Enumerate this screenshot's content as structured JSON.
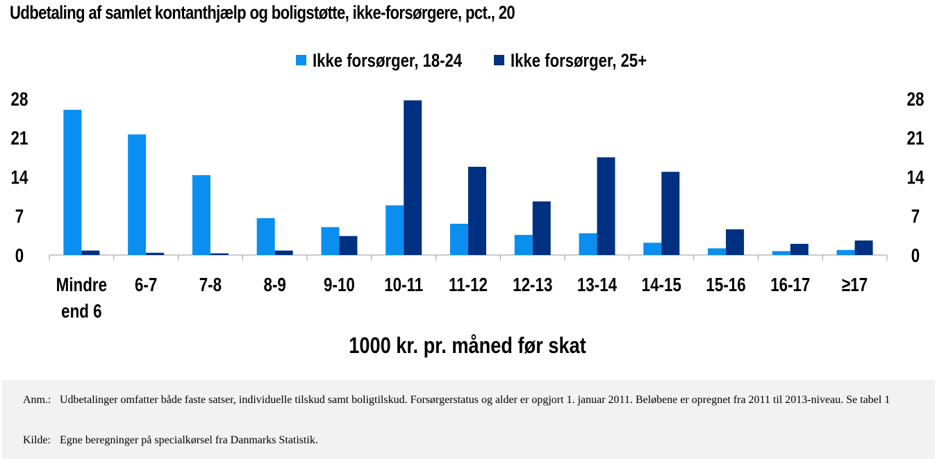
{
  "title": "Udbetaling af samlet kontanthjælp og boligstøtte, ikke-forsørgere, pct., 20",
  "colors": {
    "series1": "#0a8ff0",
    "series2": "#003082",
    "axis": "#999999",
    "notes_bg": "#f2f2f2"
  },
  "chart_data": {
    "type": "bar",
    "title": "Udbetaling af samlet kontanthjælp og boligstøtte, ikke-forsørgere, pct., 20",
    "xlabel": "1000 kr. pr. måned før skat",
    "ylabel": "",
    "ylim": [
      0,
      28
    ],
    "yticks": [
      "0",
      "7",
      "14",
      "21",
      "28"
    ],
    "legend_position": "top-center",
    "grid": false,
    "categories": [
      [
        "Mindre",
        "end 6"
      ],
      [
        "6-7"
      ],
      [
        "7-8"
      ],
      [
        "8-9"
      ],
      [
        "9-10"
      ],
      [
        "10-11"
      ],
      [
        "11-12"
      ],
      [
        "12-13"
      ],
      [
        "13-14"
      ],
      [
        "14-15"
      ],
      [
        "15-16"
      ],
      [
        "16-17"
      ],
      [
        "≥17"
      ]
    ],
    "series": [
      {
        "name": "Ikke forsørger, 18-24",
        "color": "#0a8ff0",
        "values": [
          26.0,
          21.6,
          14.3,
          6.6,
          5.0,
          8.9,
          5.6,
          3.6,
          3.9,
          2.2,
          1.2,
          0.7,
          0.9
        ]
      },
      {
        "name": "Ikke forsørger, 25+",
        "color": "#003082",
        "values": [
          0.8,
          0.4,
          0.3,
          0.8,
          3.4,
          27.7,
          15.8,
          9.6,
          17.5,
          14.9,
          4.6,
          2.0,
          2.6
        ]
      }
    ]
  },
  "notes": {
    "anm_label": "Anm.:",
    "anm_text": "Udbetalinger omfatter både faste satser, individuelle tilskud samt boligtilskud. Forsørgerstatus og alder er opgjort 1. januar 2011. Beløbene er opregnet fra 2011 til 2013-niveau. Se tabel 1",
    "kilde_label": "Kilde:",
    "kilde_text": "Egne beregninger på specialkørsel fra Danmarks Statistik."
  }
}
